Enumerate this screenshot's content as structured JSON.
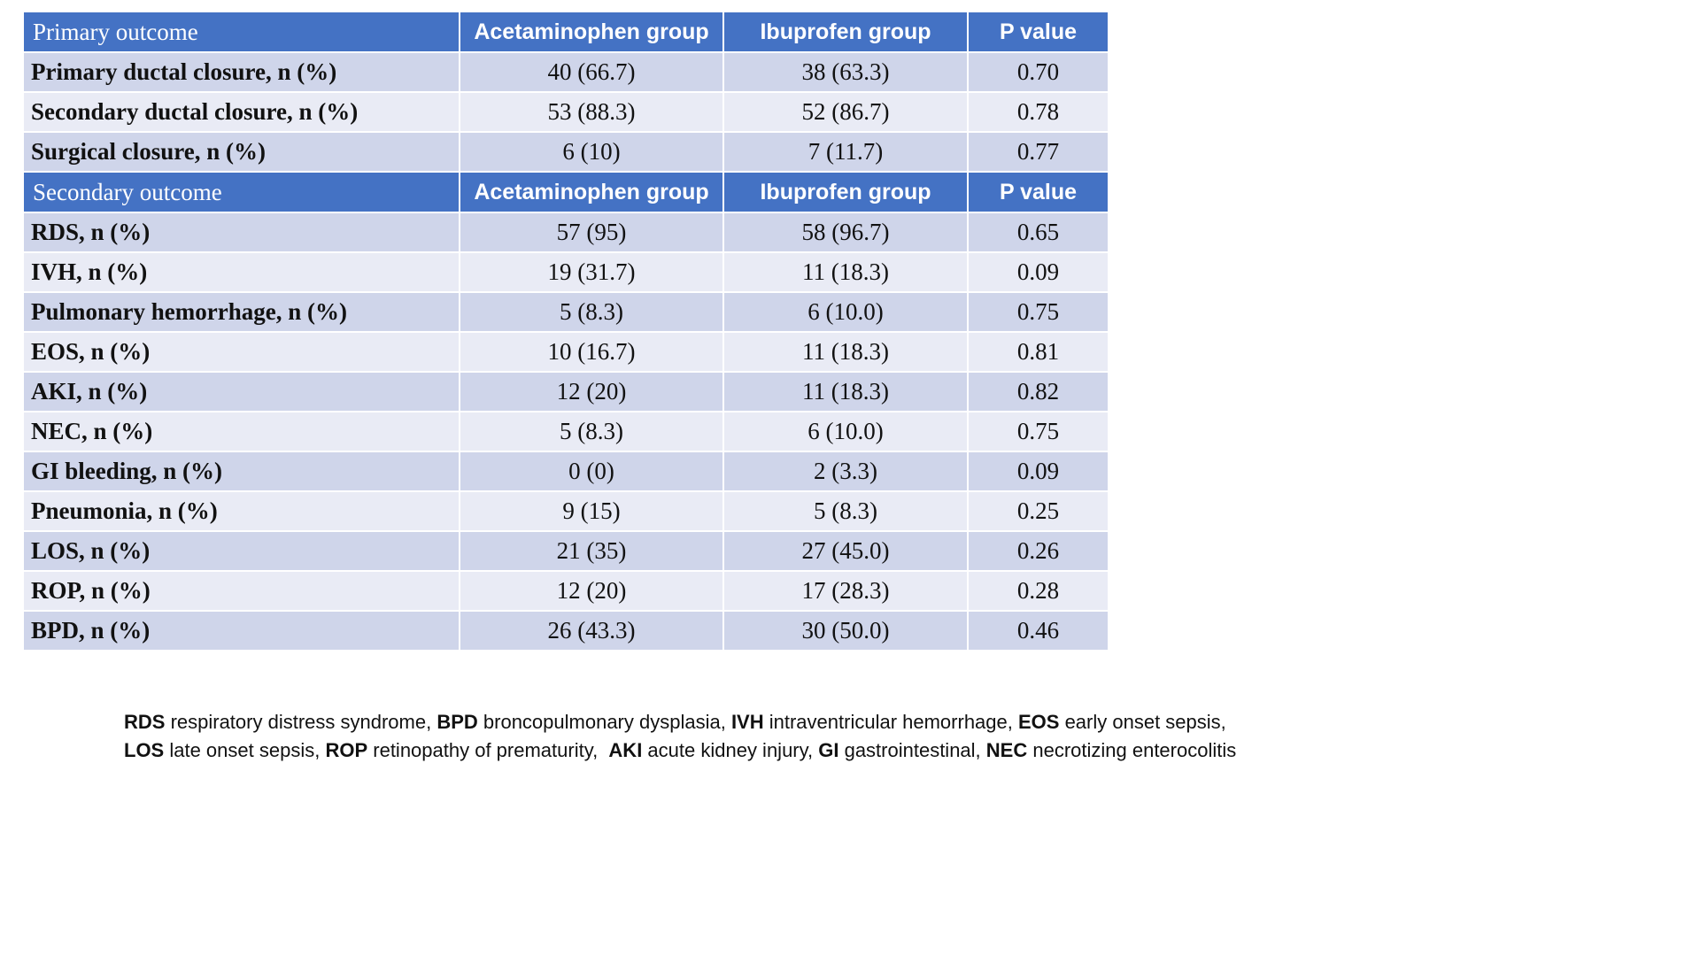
{
  "primary": {
    "header": {
      "outcome": "Primary outcome",
      "acet": "Acetaminophen group",
      "ibu": "Ibuprofen group",
      "p": "P value"
    },
    "rows": [
      {
        "label": "Primary ductal closure,  n (%)",
        "acet": "40 (66.7)",
        "ibu": "38 (63.3)",
        "p": "0.70"
      },
      {
        "label": "Secondary ductal closure,  n (%)",
        "acet": "53 (88.3)",
        "ibu": "52 (86.7)",
        "p": "0.78"
      },
      {
        "label": "Surgical closure,  n (%)",
        "acet": "6 (10)",
        "ibu": "7 (11.7)",
        "p": "0.77"
      }
    ]
  },
  "secondary": {
    "header": {
      "outcome": "Secondary outcome",
      "acet": "Acetaminophen group",
      "ibu": "Ibuprofen group",
      "p": "P value"
    },
    "rows": [
      {
        "label": "RDS, n (%)",
        "acet": "57 (95)",
        "ibu": "58 (96.7)",
        "p": "0.65"
      },
      {
        "label": "IVH, n (%)",
        "acet": "19 (31.7)",
        "ibu": "11 (18.3)",
        "p": "0.09"
      },
      {
        "label": "Pulmonary hemorrhage, n (%)",
        "acet": "5 (8.3)",
        "ibu": "6 (10.0)",
        "p": "0.75"
      },
      {
        "label": "EOS, n (%)",
        "acet": "10 (16.7)",
        "ibu": "11 (18.3)",
        "p": "0.81"
      },
      {
        "label": "AKI, n (%)",
        "acet": "12 (20)",
        "ibu": "11 (18.3)",
        "p": "0.82"
      },
      {
        "label": "NEC, n (%)",
        "acet": "5 (8.3)",
        "ibu": "6 (10.0)",
        "p": "0.75"
      },
      {
        "label": "GI bleeding, n (%)",
        "acet": "0 (0)",
        "ibu": "2 (3.3)",
        "p": "0.09"
      },
      {
        "label": "Pneumonia, n (%)",
        "acet": "9 (15)",
        "ibu": "5 (8.3)",
        "p": "0.25"
      },
      {
        "label": "LOS, n (%)",
        "acet": "21 (35)",
        "ibu": "27 (45.0)",
        "p": "0.26"
      },
      {
        "label": "ROP, n (%)",
        "acet": "12 (20)",
        "ibu": "17 (28.3)",
        "p": "0.28"
      },
      {
        "label": "BPD, n (%)",
        "acet": "26 (43.3)",
        "ibu": "30 (50.0)",
        "p": "0.46"
      }
    ]
  },
  "footnote": {
    "line1": [
      {
        "abbr": "RDS",
        "text": " respiratory distress syndrome, "
      },
      {
        "abbr": "BPD",
        "text": " broncopulmonary dysplasia, "
      },
      {
        "abbr": "IVH",
        "text": " intraventricular hemorrhage, "
      },
      {
        "abbr": "EOS",
        "text": " early onset sepsis,"
      }
    ],
    "line2": [
      {
        "abbr": "LOS",
        "text": " late onset sepsis, "
      },
      {
        "abbr": "ROP",
        "text": " retinopathy of prematurity,  "
      },
      {
        "abbr": "AKI",
        "text": " acute kidney injury, "
      },
      {
        "abbr": "GI",
        "text": " gastrointestinal, "
      },
      {
        "abbr": "NEC",
        "text": " necrotizing enterocolitis"
      }
    ]
  },
  "colors": {
    "header_bg": "#4472c4",
    "row_dark": "#cfd5ea",
    "row_light": "#e9ebf5"
  }
}
